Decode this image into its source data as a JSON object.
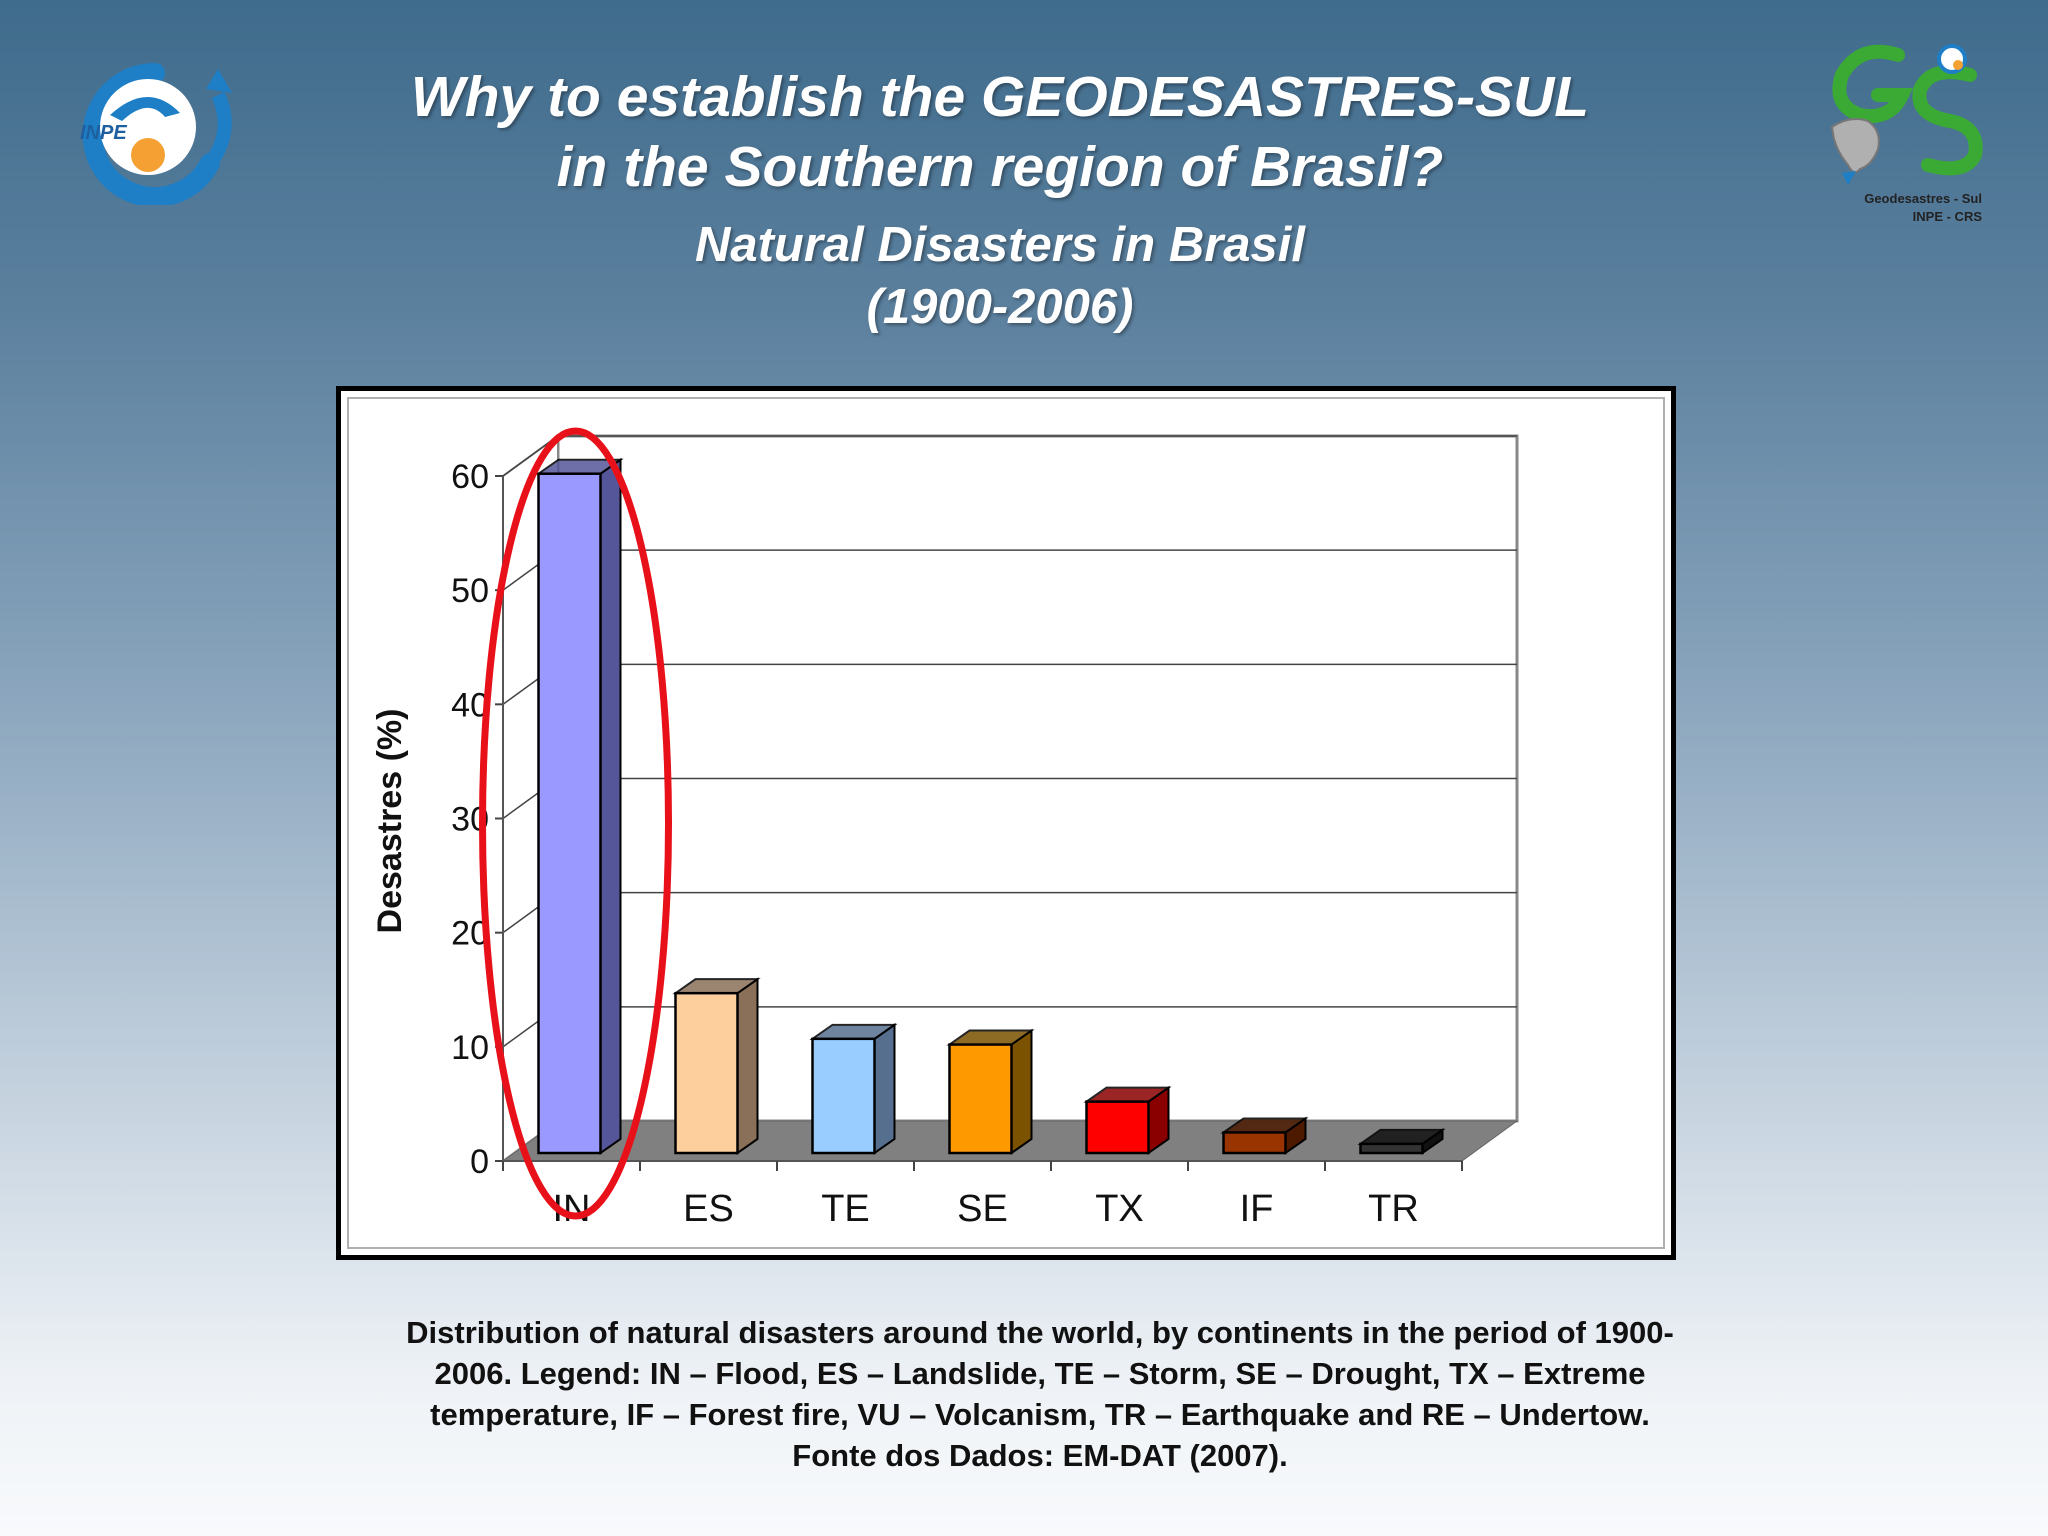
{
  "slide": {
    "title_line1": "Why to establish the GEODESASTRES-SUL",
    "title_line2": "in the Southern region of Brasil?",
    "subtitle_line1": "Natural Disasters in  Brasil",
    "subtitle_line2": "(1900-2006)",
    "logo_left_text": "INPE",
    "logo_right_caption1": "Geodesastres - Sul",
    "logo_right_caption2": "INPE - CRS",
    "caption_lines": [
      "Distribution of natural disasters around the world, by continents in the period of 1900-",
      "2006. Legend: IN – Flood, ES – Landslide, TE – Storm, SE – Drought, TX – Extreme",
      "temperature, IF – Forest fire, VU – Volcanism, TR – Earthquake  and  RE – Undertow.",
      "Fonte dos Dados: EM-DAT (2007)."
    ]
  },
  "chart_data": {
    "type": "bar",
    "categories": [
      "IN",
      "ES",
      "TE",
      "SE",
      "TX",
      "IF",
      "TR"
    ],
    "values": [
      59.5,
      14,
      10,
      9.5,
      4.5,
      1.8,
      0.8
    ],
    "colors": [
      "#9999ff",
      "#fccf9c",
      "#99ccff",
      "#ff9900",
      "#ff0000",
      "#993300",
      "#333333"
    ],
    "side_colors": [
      "#555599",
      "#8a7058",
      "#566f8f",
      "#7a5200",
      "#8a0000",
      "#4d1a00",
      "#111111"
    ],
    "ylabel": "Desastres (%)",
    "yticks": [
      0,
      10,
      20,
      30,
      40,
      50,
      60
    ],
    "ylim": [
      0,
      60
    ],
    "grid": true,
    "highlight": "IN"
  }
}
